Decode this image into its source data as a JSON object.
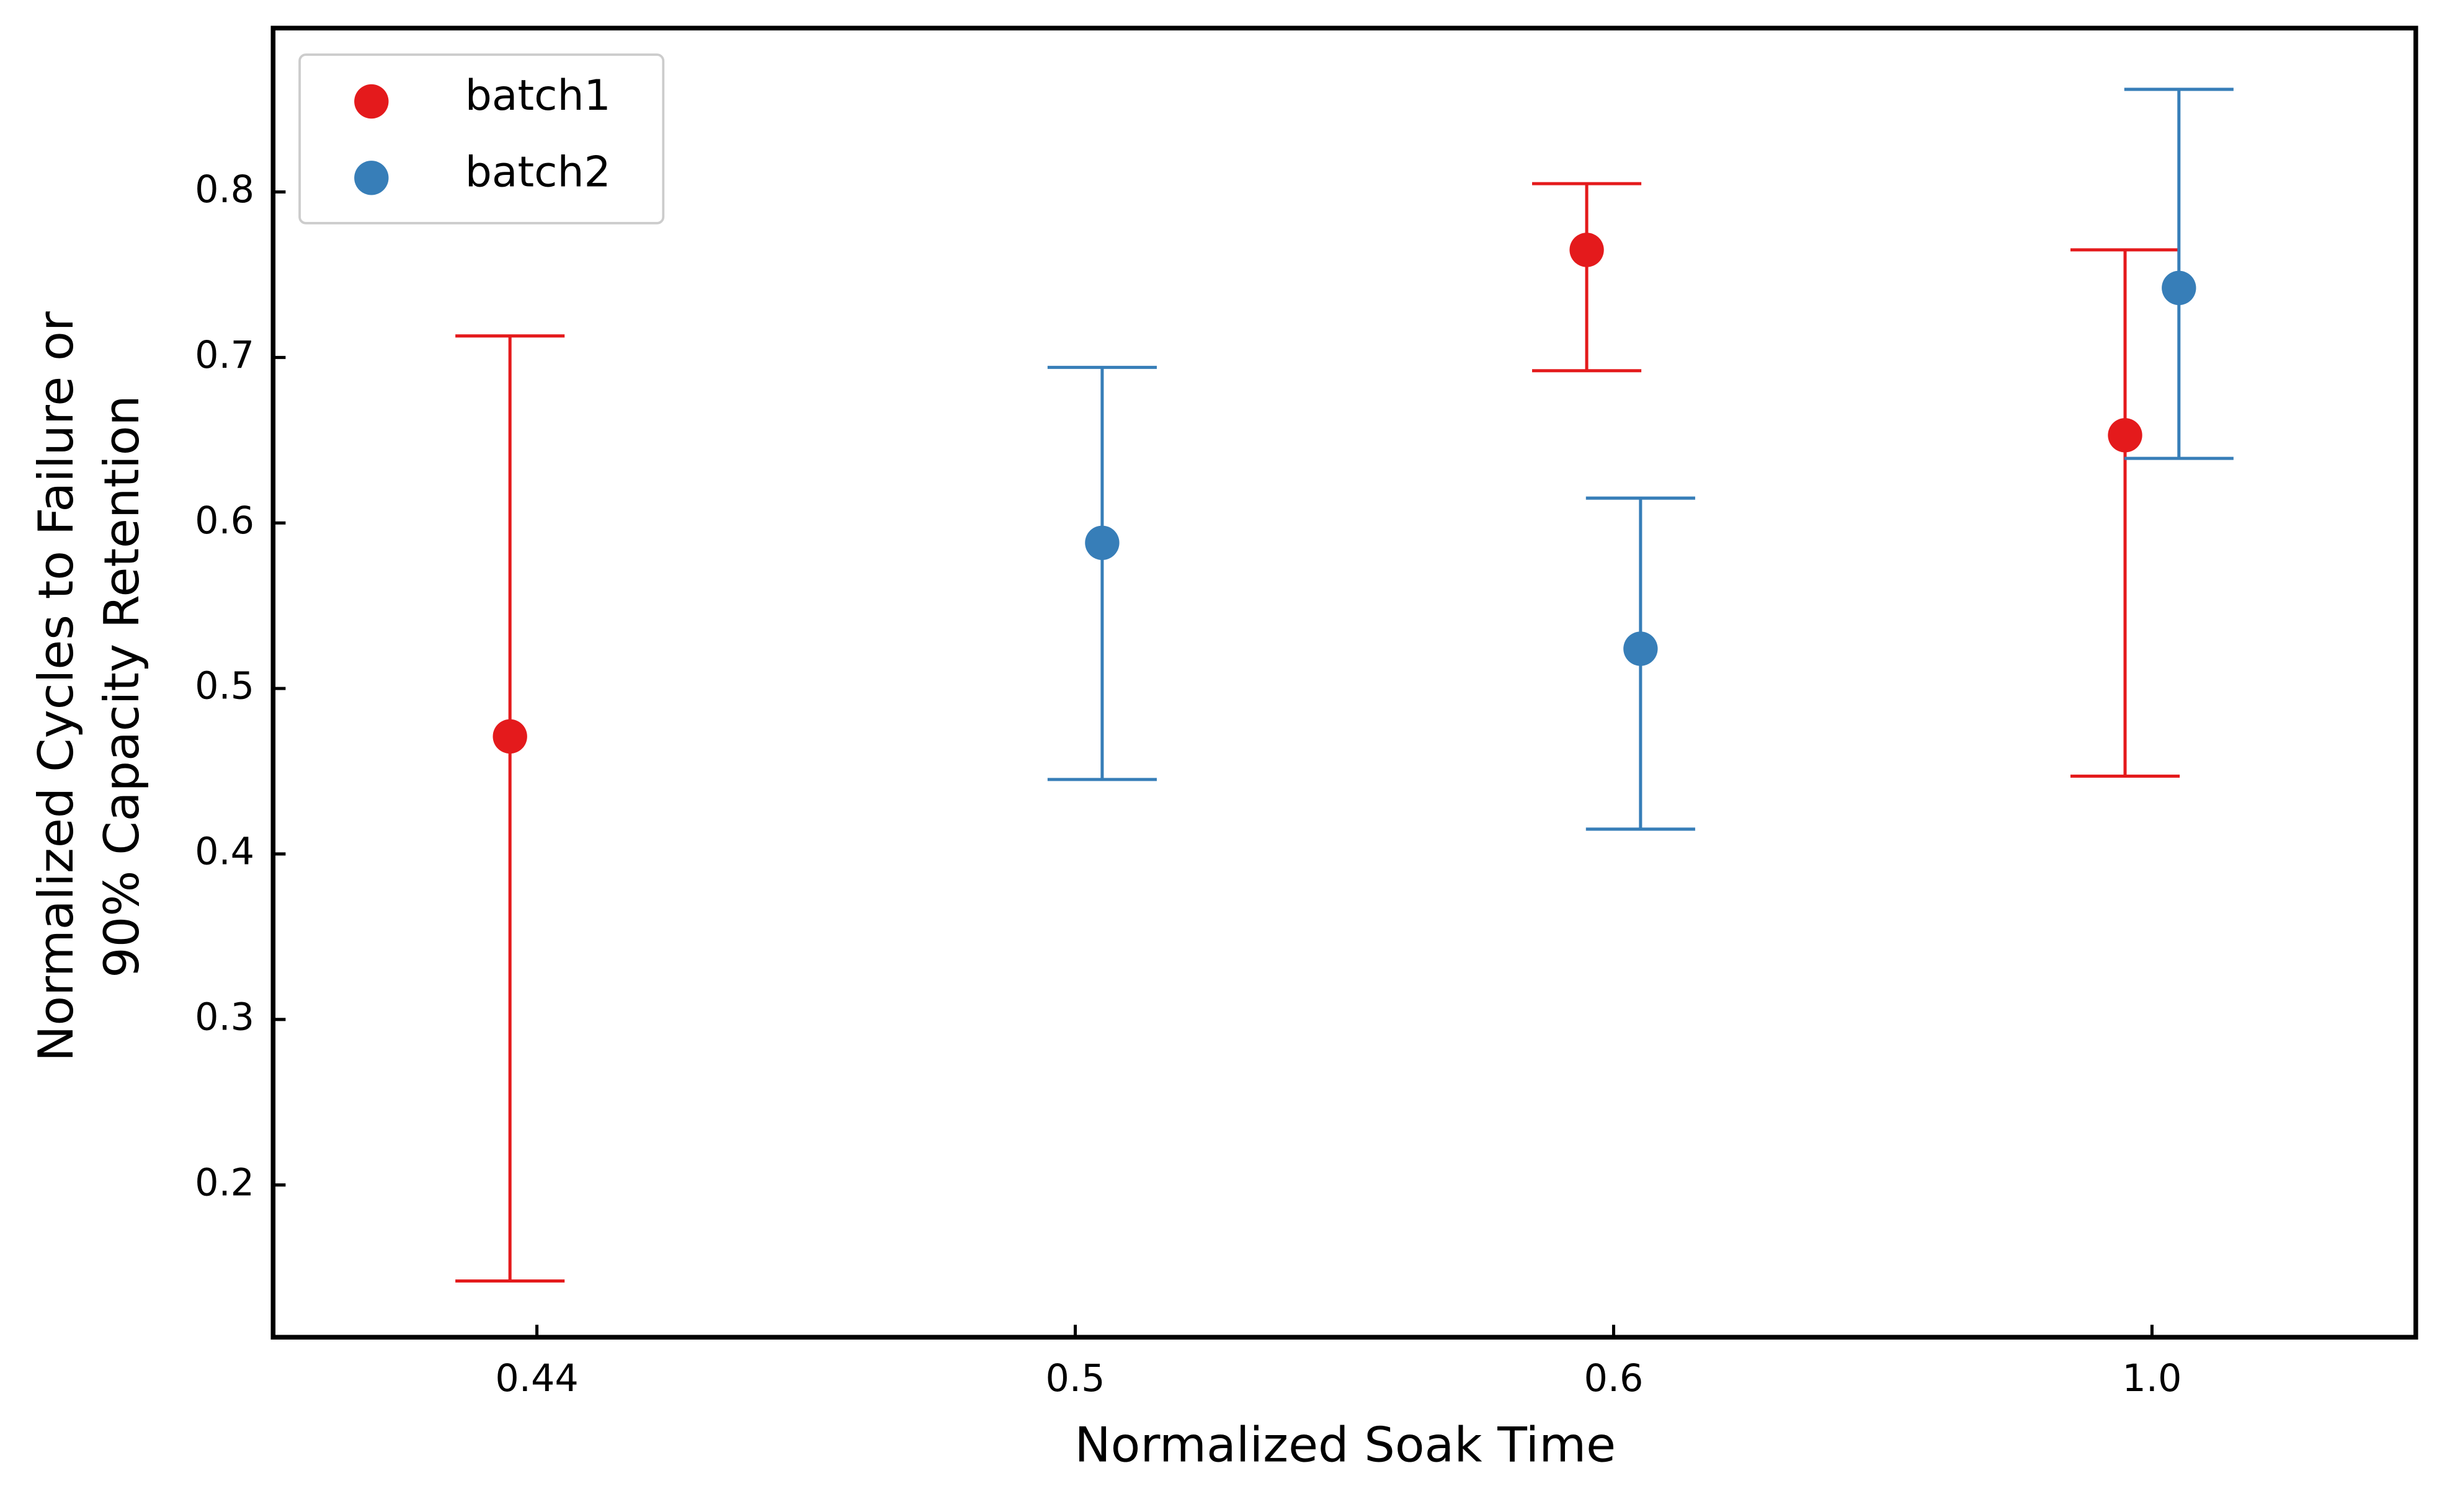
{
  "chart_data": {
    "type": "errorbar",
    "xlabel": "Normalized Soak Time",
    "ylabel": [
      "Normalized Cycles to Failure or",
      "90% Capacity Retention"
    ],
    "categories": [
      "0.44",
      "0.5",
      "0.6",
      "1.0"
    ],
    "ylim": [
      0.108,
      0.899
    ],
    "yticks": [
      0.2,
      0.3,
      0.4,
      0.5,
      0.6,
      0.7,
      0.8
    ],
    "legend": "upper left",
    "series": [
      {
        "name": "batch1",
        "color": "#e41a1c",
        "values": [
          0.471,
          null,
          0.765,
          0.653
        ],
        "error_minus": [
          0.329,
          null,
          0.073,
          0.206
        ],
        "error_plus": [
          0.242,
          null,
          0.04,
          0.112
        ]
      },
      {
        "name": "batch2",
        "color": "#377eb8",
        "values": [
          null,
          0.588,
          0.524,
          0.742
        ],
        "error_minus": [
          null,
          0.143,
          0.109,
          0.103
        ],
        "error_plus": [
          null,
          0.106,
          0.091,
          0.12
        ]
      }
    ]
  }
}
